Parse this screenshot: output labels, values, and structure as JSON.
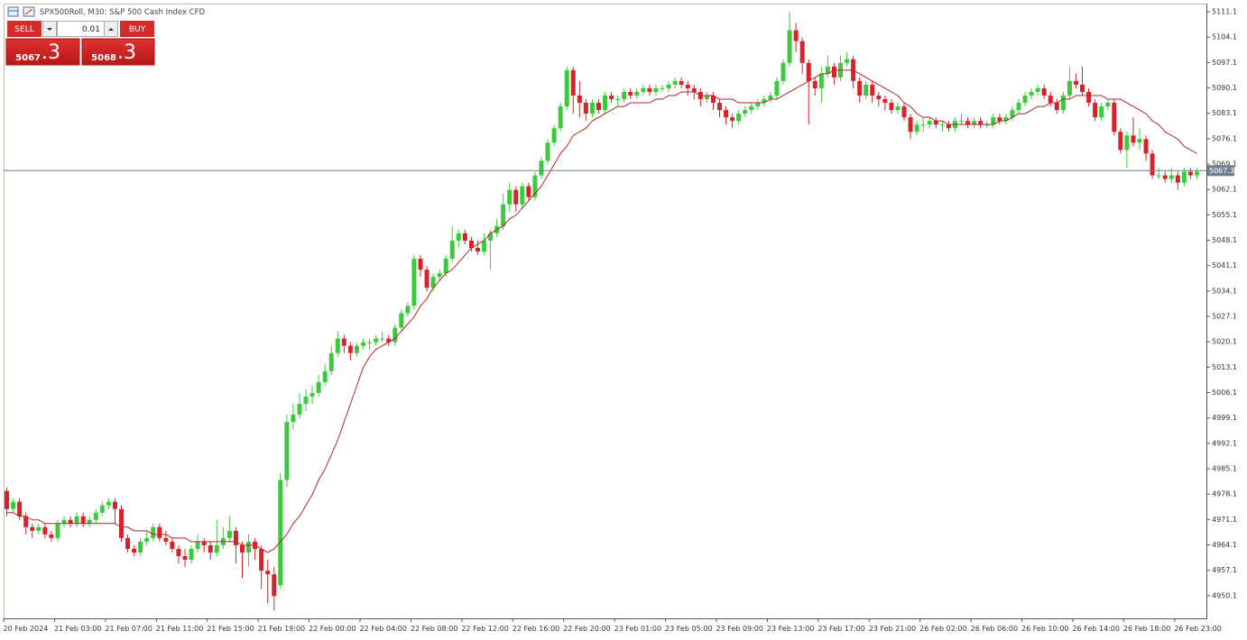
{
  "header": {
    "title": "SPX500Roll, M30:  S&P 500 Cash Index CFD"
  },
  "trade_panel": {
    "sell": "SELL",
    "buy": "BUY",
    "lot": "0.01",
    "bid_main": "5067",
    "bid_frac": ".3",
    "ask_main": "5068",
    "ask_frac": ".3"
  },
  "chart_data": {
    "type": "candlestick",
    "up_color": "#3dc93d",
    "down_color": "#d8222b",
    "ylim": [
      4944.1,
      5113.1
    ],
    "yticks": [
      4950.1,
      4957.1,
      4964.1,
      4971.1,
      4978.1,
      4985.1,
      4992.1,
      4999.1,
      5006.1,
      5013.1,
      5020.1,
      5027.1,
      5034.1,
      5041.1,
      5048.1,
      5055.1,
      5062.1,
      5069.1,
      5076.1,
      5083.1,
      5090.1,
      5097.1,
      5104.1,
      5111.1
    ],
    "last_price": 5067.3,
    "last_price_color": "#6e7f90",
    "categories": [
      "20 Feb 2024",
      null,
      null,
      null,
      null,
      null,
      null,
      null,
      "21 Feb 03:00",
      null,
      null,
      null,
      null,
      null,
      null,
      null,
      "21 Feb 07:00",
      null,
      null,
      null,
      null,
      null,
      null,
      null,
      "21 Feb 11:00",
      null,
      null,
      null,
      null,
      null,
      null,
      null,
      "21 Feb 15:00",
      null,
      null,
      null,
      null,
      null,
      null,
      null,
      "21 Feb 19:00",
      null,
      null,
      null,
      null,
      null,
      null,
      null,
      "22 Feb 00:00",
      null,
      null,
      null,
      null,
      null,
      null,
      null,
      "22 Feb 04:00",
      null,
      null,
      null,
      null,
      null,
      null,
      null,
      "22 Feb 08:00",
      null,
      null,
      null,
      null,
      null,
      null,
      null,
      "22 Feb 12:00",
      null,
      null,
      null,
      null,
      null,
      null,
      null,
      "22 Feb 16:00",
      null,
      null,
      null,
      null,
      null,
      null,
      null,
      "22 Feb 20:00",
      null,
      null,
      null,
      null,
      null,
      null,
      null,
      "23 Feb 01:00",
      null,
      null,
      null,
      null,
      null,
      null,
      null,
      "23 Feb 05:00",
      null,
      null,
      null,
      null,
      null,
      null,
      null,
      "23 Feb 09:00",
      null,
      null,
      null,
      null,
      null,
      null,
      null,
      "23 Feb 13:00",
      null,
      null,
      null,
      null,
      null,
      null,
      null,
      "23 Feb 17:00",
      null,
      null,
      null,
      null,
      null,
      null,
      null,
      "23 Feb 21:00",
      null,
      null,
      null,
      null,
      null,
      null,
      null,
      "26 Feb 02:00",
      null,
      null,
      null,
      null,
      null,
      null,
      null,
      "26 Feb 06:00",
      null,
      null,
      null,
      null,
      null,
      null,
      null,
      "26 Feb 10:00",
      null,
      null,
      null,
      null,
      null,
      null,
      null,
      "26 Feb 14:00",
      null,
      null,
      null,
      null,
      null,
      null,
      null,
      "26 Feb 18:00",
      null,
      null,
      null,
      null,
      null,
      null,
      null,
      "26 Feb 23:00",
      null,
      null,
      null
    ],
    "candles": [
      [
        4979,
        4980,
        4972,
        4974
      ],
      [
        4974,
        4977,
        4973,
        4976
      ],
      [
        4976,
        4977,
        4971,
        4972
      ],
      [
        4972,
        4973,
        4967,
        4969
      ],
      [
        4969,
        4970,
        4966,
        4968
      ],
      [
        4968,
        4970,
        4967,
        4969
      ],
      [
        4969,
        4970,
        4966,
        4967
      ],
      [
        4967,
        4968,
        4965,
        4966
      ],
      [
        4966,
        4971,
        4965,
        4970
      ],
      [
        4970,
        4972,
        4969,
        4971
      ],
      [
        4971,
        4972,
        4969,
        4970
      ],
      [
        4970,
        4973,
        4969,
        4972
      ],
      [
        4972,
        4973,
        4969,
        4970
      ],
      [
        4970,
        4972,
        4969,
        4971
      ],
      [
        4971,
        4974,
        4970,
        4973
      ],
      [
        4973,
        4976,
        4972,
        4975
      ],
      [
        4975,
        4977,
        4974,
        4976
      ],
      [
        4976,
        4977,
        4970,
        4974
      ],
      [
        4974,
        4975,
        4965,
        4966
      ],
      [
        4966,
        4967,
        4962,
        4963
      ],
      [
        4963,
        4964,
        4961,
        4962
      ],
      [
        4962,
        4966,
        4961,
        4965
      ],
      [
        4965,
        4968,
        4964,
        4966
      ],
      [
        4966,
        4970,
        4965,
        4969
      ],
      [
        4969,
        4970,
        4965,
        4966
      ],
      [
        4966,
        4968,
        4964,
        4965
      ],
      [
        4965,
        4966,
        4962,
        4963
      ],
      [
        4963,
        4964,
        4959,
        4961
      ],
      [
        4961,
        4963,
        4958,
        4960
      ],
      [
        4960,
        4964,
        4959,
        4963
      ],
      [
        4963,
        4967,
        4962,
        4965
      ],
      [
        4965,
        4966,
        4962,
        4964
      ],
      [
        4964,
        4965,
        4960,
        4962
      ],
      [
        4962,
        4971,
        4961,
        4964
      ],
      [
        4964,
        4969,
        4963,
        4966
      ],
      [
        4966,
        4972,
        4965,
        4968
      ],
      [
        4968,
        4969,
        4959,
        4964
      ],
      [
        4964,
        4965,
        4955,
        4962
      ],
      [
        4962,
        4967,
        4958,
        4965
      ],
      [
        4965,
        4966,
        4960,
        4963
      ],
      [
        4963,
        4964,
        4952,
        4957
      ],
      [
        4957,
        4960,
        4948,
        4956
      ],
      [
        4956,
        4958,
        4946,
        4950
      ],
      [
        4953,
        4984,
        4952,
        4982
      ],
      [
        4982,
        5000,
        4980,
        4998
      ],
      [
        4998,
        5003,
        4996,
        5000
      ],
      [
        5000,
        5006,
        4999,
        5003
      ],
      [
        5003,
        5007,
        5001,
        5005
      ],
      [
        5005,
        5008,
        5003,
        5006
      ],
      [
        5006,
        5011,
        5005,
        5009
      ],
      [
        5009,
        5014,
        5008,
        5012
      ],
      [
        5012,
        5019,
        5011,
        5017
      ],
      [
        5017,
        5023,
        5016,
        5021
      ],
      [
        5021,
        5022,
        5017,
        5019
      ],
      [
        5019,
        5020,
        5015,
        5017
      ],
      [
        5017,
        5020,
        5016,
        5019
      ],
      [
        5019,
        5021,
        5018,
        5020
      ],
      [
        5020,
        5021,
        5018,
        5020
      ],
      [
        5020,
        5022,
        5019,
        5021
      ],
      [
        5021,
        5023,
        5020,
        5021
      ],
      [
        5021,
        5022,
        5019,
        5020
      ],
      [
        5020,
        5025,
        5019,
        5024
      ],
      [
        5024,
        5029,
        5023,
        5028
      ],
      [
        5028,
        5031,
        5027,
        5030
      ],
      [
        5030,
        5044,
        5029,
        5043
      ],
      [
        5043,
        5044,
        5038,
        5040
      ],
      [
        5040,
        5041,
        5034,
        5035
      ],
      [
        5035,
        5039,
        5034,
        5038
      ],
      [
        5038,
        5040,
        5037,
        5039
      ],
      [
        5039,
        5044,
        5038,
        5043
      ],
      [
        5043,
        5052,
        5042,
        5048
      ],
      [
        5048,
        5051,
        5046,
        5050
      ],
      [
        5050,
        5051,
        5047,
        5048
      ],
      [
        5048,
        5049,
        5045,
        5046
      ],
      [
        5046,
        5048,
        5044,
        5045
      ],
      [
        5045,
        5050,
        5044,
        5048
      ],
      [
        5048,
        5051,
        5040,
        5050
      ],
      [
        5050,
        5054,
        5049,
        5052
      ],
      [
        5052,
        5061,
        5051,
        5058
      ],
      [
        5058,
        5064,
        5056,
        5062
      ],
      [
        5062,
        5063,
        5056,
        5058
      ],
      [
        5058,
        5064,
        5057,
        5063
      ],
      [
        5063,
        5064,
        5059,
        5060
      ],
      [
        5060,
        5067,
        5059,
        5066
      ],
      [
        5066,
        5071,
        5065,
        5070
      ],
      [
        5070,
        5076,
        5069,
        5075
      ],
      [
        5075,
        5080,
        5074,
        5079
      ],
      [
        5079,
        5086,
        5078,
        5085
      ],
      [
        5085,
        5096,
        5084,
        5095
      ],
      [
        5095,
        5096,
        5083,
        5088
      ],
      [
        5088,
        5092,
        5082,
        5086
      ],
      [
        5086,
        5087,
        5081,
        5083
      ],
      [
        5083,
        5087,
        5082,
        5086
      ],
      [
        5086,
        5087,
        5083,
        5084
      ],
      [
        5084,
        5089,
        5083,
        5088
      ],
      [
        5088,
        5089,
        5086,
        5087
      ],
      [
        5087,
        5088,
        5085,
        5087
      ],
      [
        5087,
        5090,
        5086,
        5089
      ],
      [
        5089,
        5090,
        5087,
        5088
      ],
      [
        5088,
        5090,
        5087,
        5089
      ],
      [
        5089,
        5091,
        5088,
        5090
      ],
      [
        5090,
        5091,
        5088,
        5089
      ],
      [
        5089,
        5091,
        5088,
        5090
      ],
      [
        5090,
        5091,
        5089,
        5090
      ],
      [
        5090,
        5092,
        5089,
        5091
      ],
      [
        5091,
        5093,
        5090,
        5092
      ],
      [
        5092,
        5093,
        5090,
        5091
      ],
      [
        5091,
        5092,
        5088,
        5090
      ],
      [
        5090,
        5091,
        5087,
        5089
      ],
      [
        5089,
        5090,
        5085,
        5087
      ],
      [
        5087,
        5089,
        5086,
        5088
      ],
      [
        5088,
        5089,
        5084,
        5086
      ],
      [
        5086,
        5087,
        5082,
        5084
      ],
      [
        5084,
        5085,
        5080,
        5082
      ],
      [
        5082,
        5083,
        5079,
        5081
      ],
      [
        5081,
        5084,
        5080,
        5083
      ],
      [
        5083,
        5085,
        5082,
        5084
      ],
      [
        5084,
        5086,
        5083,
        5085
      ],
      [
        5085,
        5087,
        5084,
        5086
      ],
      [
        5086,
        5088,
        5085,
        5087
      ],
      [
        5087,
        5089,
        5086,
        5088
      ],
      [
        5088,
        5093,
        5087,
        5092
      ],
      [
        5092,
        5098,
        5091,
        5097
      ],
      [
        5097,
        5111,
        5096,
        5106
      ],
      [
        5106,
        5108,
        5100,
        5103
      ],
      [
        5103,
        5104,
        5094,
        5097
      ],
      [
        5097,
        5098,
        5080,
        5092
      ],
      [
        5092,
        5093,
        5088,
        5090
      ],
      [
        5090,
        5096,
        5086,
        5094
      ],
      [
        5094,
        5099,
        5093,
        5096
      ],
      [
        5096,
        5097,
        5091,
        5093
      ],
      [
        5093,
        5099,
        5092,
        5097
      ],
      [
        5097,
        5100,
        5096,
        5098
      ],
      [
        5098,
        5099,
        5090,
        5092
      ],
      [
        5092,
        5093,
        5086,
        5088
      ],
      [
        5088,
        5092,
        5087,
        5091
      ],
      [
        5091,
        5092,
        5086,
        5088
      ],
      [
        5088,
        5089,
        5085,
        5087
      ],
      [
        5087,
        5088,
        5084,
        5086
      ],
      [
        5086,
        5087,
        5083,
        5084
      ],
      [
        5084,
        5086,
        5083,
        5085
      ],
      [
        5085,
        5086,
        5081,
        5082
      ],
      [
        5082,
        5083,
        5076,
        5078
      ],
      [
        5078,
        5081,
        5077,
        5080
      ],
      [
        5080,
        5082,
        5078,
        5080
      ],
      [
        5080,
        5082,
        5079,
        5081
      ],
      [
        5081,
        5082,
        5079,
        5080
      ],
      [
        5080,
        5081,
        5078,
        5080
      ],
      [
        5080,
        5081,
        5078,
        5079
      ],
      [
        5079,
        5082,
        5078,
        5081
      ],
      [
        5081,
        5083,
        5080,
        5081
      ],
      [
        5081,
        5082,
        5079,
        5080
      ],
      [
        5080,
        5082,
        5079,
        5081
      ],
      [
        5081,
        5082,
        5079,
        5080
      ],
      [
        5080,
        5081,
        5079,
        5080
      ],
      [
        5080,
        5083,
        5079,
        5082
      ],
      [
        5082,
        5083,
        5080,
        5081
      ],
      [
        5081,
        5083,
        5080,
        5082
      ],
      [
        5082,
        5085,
        5081,
        5084
      ],
      [
        5084,
        5087,
        5083,
        5086
      ],
      [
        5086,
        5089,
        5085,
        5088
      ],
      [
        5088,
        5090,
        5087,
        5089
      ],
      [
        5089,
        5091,
        5088,
        5090
      ],
      [
        5090,
        5091,
        5087,
        5088
      ],
      [
        5088,
        5089,
        5085,
        5086
      ],
      [
        5086,
        5087,
        5083,
        5084
      ],
      [
        5084,
        5089,
        5083,
        5088
      ],
      [
        5088,
        5096,
        5087,
        5092
      ],
      [
        5092,
        5094,
        5090,
        5091
      ],
      [
        5091,
        5096,
        5088,
        5089
      ],
      [
        5089,
        5090,
        5085,
        5086
      ],
      [
        5086,
        5087,
        5081,
        5082
      ],
      [
        5082,
        5086,
        5081,
        5085
      ],
      [
        5085,
        5087,
        5084,
        5086
      ],
      [
        5086,
        5087,
        5077,
        5078
      ],
      [
        5078,
        5079,
        5072,
        5073
      ],
      [
        5073,
        5078,
        5068,
        5077
      ],
      [
        5077,
        5082,
        5074,
        5075
      ],
      [
        5075,
        5079,
        5073,
        5076
      ],
      [
        5076,
        5077,
        5070,
        5072
      ],
      [
        5072,
        5073,
        5065,
        5066
      ],
      [
        5066,
        5068,
        5065,
        5066
      ],
      [
        5066,
        5067,
        5064,
        5065
      ],
      [
        5065,
        5068,
        5064,
        5066
      ],
      [
        5066,
        5067,
        5062,
        5064
      ],
      [
        5064,
        5068,
        5063,
        5067
      ],
      [
        5067,
        5068,
        5065,
        5066
      ],
      [
        5066,
        5068,
        5065,
        5067
      ]
    ],
    "ma": {
      "color": "#b3262c",
      "values": [
        4973,
        4973,
        4972,
        4972,
        4971,
        4971,
        4970,
        4970,
        4970,
        4970,
        4970,
        4970,
        4970,
        4970,
        4970,
        4970,
        4970,
        4970,
        4969,
        4969,
        4968,
        4968,
        4968,
        4967,
        4967,
        4967,
        4966,
        4966,
        4966,
        4965,
        4965,
        4965,
        4965,
        4965,
        4965,
        4965,
        4965,
        4964,
        4964,
        4964,
        4963,
        4962,
        4963,
        4965,
        4967,
        4970,
        4972,
        4975,
        4978,
        4982,
        4985,
        4989,
        4993,
        4998,
        5003,
        5008,
        5013,
        5016,
        5018,
        5019,
        5020,
        5021,
        5023,
        5025,
        5027,
        5030,
        5032,
        5035,
        5037,
        5039,
        5040,
        5042,
        5044,
        5046,
        5047,
        5048,
        5050,
        5051,
        5052,
        5054,
        5055,
        5057,
        5059,
        5061,
        5063,
        5066,
        5069,
        5072,
        5074,
        5077,
        5078,
        5079,
        5081,
        5082,
        5083,
        5084,
        5085,
        5085,
        5086,
        5086,
        5086,
        5086,
        5087,
        5087,
        5088,
        5088,
        5089,
        5089,
        5089,
        5088,
        5088,
        5088,
        5087,
        5087,
        5087,
        5086,
        5086,
        5086,
        5086,
        5086,
        5087,
        5087,
        5088,
        5089,
        5090,
        5091,
        5092,
        5093,
        5094,
        5094,
        5095,
        5095,
        5095,
        5095,
        5094,
        5093,
        5092,
        5091,
        5090,
        5089,
        5088,
        5086,
        5085,
        5083,
        5082,
        5082,
        5081,
        5081,
        5080,
        5080,
        5080,
        5080,
        5080,
        5080,
        5080,
        5080,
        5081,
        5081,
        5082,
        5083,
        5083,
        5084,
        5085,
        5085,
        5086,
        5086,
        5087,
        5087,
        5088,
        5088,
        5088,
        5088,
        5088,
        5087,
        5087,
        5087,
        5086,
        5085,
        5084,
        5083,
        5081,
        5080,
        5078,
        5077,
        5076,
        5074,
        5073,
        5072
      ]
    }
  }
}
